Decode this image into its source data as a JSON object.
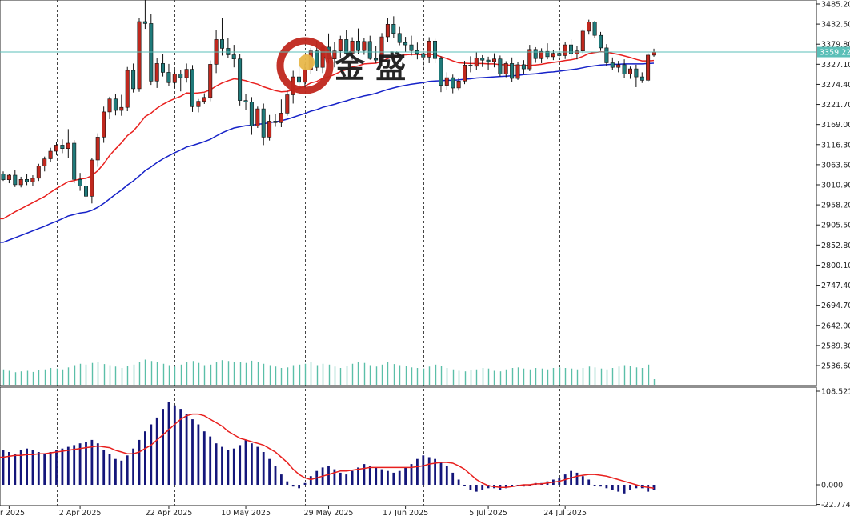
{
  "logo": {
    "text": "金 盛",
    "colors": {
      "ring": "#c0281e",
      "core": "#e8b84a"
    }
  },
  "colors": {
    "up": "#c0281e",
    "down": "#1f7a7a",
    "ma_fast": "#e8201e",
    "ma_slow": "#1622c8",
    "volume": "#5bbfa8",
    "histogram": "#14167a",
    "signal": "#e8201e",
    "current_price_line": "#5bbfb8",
    "current_price_label_bg": "#5bbfb8"
  },
  "chart_data": [
    {
      "type": "candlestick",
      "price_axis_ticks": [
        "3485.20",
        "3432.50",
        "3379.80",
        "3327.10",
        "3274.40",
        "3221.70",
        "3169.00",
        "3116.30",
        "3063.60",
        "3010.90",
        "2958.20",
        "2905.50",
        "2852.80",
        "2800.10",
        "2747.40",
        "2694.70",
        "2642.00",
        "2589.30",
        "2536.60"
      ],
      "ylim": [
        2510,
        3492
      ],
      "current_price": 3359.22,
      "current_price_label": "3359.22",
      "x_tick_labels": [
        "r 2025",
        "2 Apr 2025",
        "22 Apr 2025",
        "10 May 2025",
        "29 May 2025",
        "17 Jun 2025",
        "5 Jul 2025",
        "24 Jul 2025"
      ],
      "x_tick_bar_index": [
        1,
        13,
        28,
        41,
        55,
        68,
        82,
        95
      ],
      "vline_bar_index": [
        9,
        29,
        51,
        71,
        94,
        119
      ],
      "total_slots": 138,
      "candles": [
        [
          3039,
          3046,
          3021,
          3024
        ],
        [
          3024,
          3040,
          3015,
          3036
        ],
        [
          3036,
          3049,
          3005,
          3011
        ],
        [
          3011,
          3032,
          3004,
          3025
        ],
        [
          3025,
          3039,
          3010,
          3019
        ],
        [
          3019,
          3036,
          3008,
          3028
        ],
        [
          3028,
          3066,
          3021,
          3060
        ],
        [
          3060,
          3085,
          3046,
          3079
        ],
        [
          3079,
          3108,
          3071,
          3099
        ],
        [
          3099,
          3123,
          3089,
          3115
        ],
        [
          3115,
          3130,
          3094,
          3106
        ],
        [
          3106,
          3157,
          3081,
          3120
        ],
        [
          3120,
          3128,
          3015,
          3025
        ],
        [
          3025,
          3042,
          2995,
          3008
        ],
        [
          3008,
          3039,
          2971,
          2981
        ],
        [
          2981,
          3081,
          2962,
          3076
        ],
        [
          3076,
          3146,
          3058,
          3136
        ],
        [
          3136,
          3216,
          3121,
          3202
        ],
        [
          3202,
          3242,
          3183,
          3236
        ],
        [
          3236,
          3249,
          3193,
          3206
        ],
        [
          3206,
          3247,
          3192,
          3214
        ],
        [
          3214,
          3320,
          3204,
          3311
        ],
        [
          3311,
          3329,
          3253,
          3263
        ],
        [
          3263,
          3449,
          3255,
          3439
        ],
        [
          3439,
          3500,
          3420,
          3434
        ],
        [
          3434,
          3458,
          3273,
          3283
        ],
        [
          3283,
          3344,
          3265,
          3329
        ],
        [
          3329,
          3355,
          3295,
          3306
        ],
        [
          3306,
          3328,
          3271,
          3279
        ],
        [
          3279,
          3312,
          3265,
          3302
        ],
        [
          3302,
          3313,
          3256,
          3292
        ],
        [
          3292,
          3329,
          3279,
          3314
        ],
        [
          3314,
          3325,
          3202,
          3216
        ],
        [
          3216,
          3236,
          3201,
          3230
        ],
        [
          3230,
          3251,
          3223,
          3240
        ],
        [
          3240,
          3337,
          3230,
          3327
        ],
        [
          3327,
          3416,
          3304,
          3392
        ],
        [
          3392,
          3448,
          3350,
          3369
        ],
        [
          3369,
          3395,
          3343,
          3352
        ],
        [
          3352,
          3378,
          3319,
          3341
        ],
        [
          3341,
          3355,
          3219,
          3232
        ],
        [
          3232,
          3249,
          3207,
          3228
        ],
        [
          3228,
          3241,
          3142,
          3165
        ],
        [
          3165,
          3216,
          3160,
          3210
        ],
        [
          3210,
          3224,
          3115,
          3136
        ],
        [
          3136,
          3194,
          3127,
          3178
        ],
        [
          3178,
          3196,
          3163,
          3174
        ],
        [
          3174,
          3235,
          3162,
          3199
        ],
        [
          3199,
          3258,
          3192,
          3247
        ],
        [
          3247,
          3310,
          3224,
          3294
        ],
        [
          3294,
          3325,
          3260,
          3280
        ],
        [
          3280,
          3328,
          3264,
          3313
        ],
        [
          3313,
          3370,
          3302,
          3362
        ],
        [
          3362,
          3389,
          3309,
          3319
        ],
        [
          3319,
          3383,
          3304,
          3372
        ],
        [
          3372,
          3408,
          3329,
          3341
        ],
        [
          3341,
          3385,
          3319,
          3362
        ],
        [
          3362,
          3402,
          3344,
          3392
        ],
        [
          3392,
          3418,
          3351,
          3356
        ],
        [
          3356,
          3398,
          3339,
          3388
        ],
        [
          3388,
          3421,
          3353,
          3363
        ],
        [
          3363,
          3395,
          3352,
          3387
        ],
        [
          3387,
          3402,
          3339,
          3342
        ],
        [
          3342,
          3376,
          3330,
          3338
        ],
        [
          3338,
          3409,
          3322,
          3399
        ],
        [
          3399,
          3449,
          3385,
          3432
        ],
        [
          3432,
          3453,
          3396,
          3408
        ],
        [
          3408,
          3425,
          3377,
          3384
        ],
        [
          3384,
          3399,
          3360,
          3378
        ],
        [
          3378,
          3402,
          3350,
          3363
        ],
        [
          3363,
          3384,
          3340,
          3355
        ],
        [
          3355,
          3368,
          3310,
          3346
        ],
        [
          3346,
          3398,
          3330,
          3388
        ],
        [
          3388,
          3394,
          3330,
          3342
        ],
        [
          3342,
          3348,
          3254,
          3272
        ],
        [
          3272,
          3306,
          3260,
          3292
        ],
        [
          3292,
          3300,
          3251,
          3265
        ],
        [
          3265,
          3291,
          3258,
          3283
        ],
        [
          3283,
          3336,
          3275,
          3325
        ],
        [
          3325,
          3348,
          3306,
          3322
        ],
        [
          3322,
          3358,
          3312,
          3343
        ],
        [
          3343,
          3351,
          3320,
          3338
        ],
        [
          3338,
          3347,
          3312,
          3334
        ],
        [
          3334,
          3356,
          3319,
          3341
        ],
        [
          3341,
          3350,
          3295,
          3302
        ],
        [
          3302,
          3335,
          3293,
          3329
        ],
        [
          3329,
          3345,
          3280,
          3290
        ],
        [
          3290,
          3334,
          3286,
          3326
        ],
        [
          3326,
          3338,
          3302,
          3315
        ],
        [
          3315,
          3378,
          3309,
          3366
        ],
        [
          3366,
          3372,
          3331,
          3342
        ],
        [
          3342,
          3369,
          3330,
          3361
        ],
        [
          3361,
          3382,
          3340,
          3347
        ],
        [
          3347,
          3364,
          3338,
          3356
        ],
        [
          3356,
          3373,
          3345,
          3350
        ],
        [
          3350,
          3386,
          3341,
          3378
        ],
        [
          3378,
          3393,
          3345,
          3354
        ],
        [
          3354,
          3376,
          3340,
          3362
        ],
        [
          3362,
          3419,
          3356,
          3414
        ],
        [
          3414,
          3444,
          3405,
          3438
        ],
        [
          3438,
          3441,
          3396,
          3403
        ],
        [
          3403,
          3412,
          3362,
          3370
        ],
        [
          3370,
          3380,
          3322,
          3331
        ],
        [
          3331,
          3345,
          3313,
          3319
        ],
        [
          3319,
          3336,
          3306,
          3326
        ],
        [
          3326,
          3340,
          3290,
          3302
        ],
        [
          3302,
          3321,
          3289,
          3315
        ],
        [
          3315,
          3326,
          3267,
          3294
        ],
        [
          3294,
          3306,
          3278,
          3285
        ],
        [
          3285,
          3356,
          3281,
          3351
        ],
        [
          3351,
          3368,
          3347,
          3359
        ]
      ],
      "ma_fast": [
        2922,
        2931,
        2940,
        2948,
        2956,
        2964,
        2972,
        2980,
        2991,
        3001,
        3010,
        3019,
        3022,
        3026,
        3028,
        3035,
        3048,
        3066,
        3088,
        3105,
        3121,
        3140,
        3152,
        3170,
        3190,
        3199,
        3212,
        3222,
        3230,
        3237,
        3243,
        3252,
        3251,
        3252,
        3254,
        3260,
        3270,
        3278,
        3284,
        3289,
        3287,
        3284,
        3279,
        3275,
        3268,
        3263,
        3258,
        3255,
        3256,
        3260,
        3264,
        3270,
        3278,
        3282,
        3290,
        3294,
        3300,
        3308,
        3313,
        3320,
        3323,
        3328,
        3329,
        3330,
        3335,
        3342,
        3347,
        3350,
        3352,
        3353,
        3353,
        3352,
        3354,
        3352,
        3347,
        3342,
        3336,
        3331,
        3330,
        3329,
        3329,
        3329,
        3328,
        3328,
        3326,
        3326,
        3324,
        3323,
        3324,
        3324,
        3325,
        3327,
        3330,
        3332,
        3334,
        3337,
        3339,
        3342,
        3348,
        3355,
        3358,
        3360,
        3359,
        3356,
        3353,
        3349,
        3345,
        3340,
        3336,
        3336,
        3337
      ],
      "ma_slow": [
        2860,
        2866,
        2872,
        2878,
        2884,
        2890,
        2896,
        2902,
        2909,
        2915,
        2922,
        2929,
        2933,
        2937,
        2939,
        2944,
        2952,
        2962,
        2974,
        2986,
        2997,
        3010,
        3021,
        3034,
        3048,
        3058,
        3069,
        3079,
        3087,
        3095,
        3102,
        3110,
        3114,
        3119,
        3124,
        3130,
        3139,
        3147,
        3154,
        3160,
        3163,
        3166,
        3167,
        3170,
        3171,
        3174,
        3176,
        3179,
        3183,
        3188,
        3193,
        3198,
        3204,
        3208,
        3214,
        3218,
        3222,
        3227,
        3231,
        3236,
        3240,
        3244,
        3247,
        3251,
        3256,
        3261,
        3265,
        3269,
        3272,
        3275,
        3277,
        3279,
        3282,
        3283,
        3284,
        3285,
        3285,
        3286,
        3288,
        3289,
        3291,
        3292,
        3293,
        3294,
        3295,
        3296,
        3297,
        3298,
        3300,
        3301,
        3302,
        3304,
        3306,
        3307,
        3309,
        3311,
        3313,
        3315,
        3318,
        3321,
        3323,
        3325,
        3326,
        3327,
        3327,
        3328,
        3328,
        3328,
        3328,
        3329,
        3330
      ],
      "volume": [
        0.55,
        0.5,
        0.45,
        0.48,
        0.5,
        0.46,
        0.52,
        0.55,
        0.6,
        0.58,
        0.55,
        0.62,
        0.7,
        0.75,
        0.72,
        0.78,
        0.8,
        0.74,
        0.7,
        0.65,
        0.6,
        0.68,
        0.72,
        0.82,
        0.9,
        0.85,
        0.8,
        0.75,
        0.7,
        0.65,
        0.72,
        0.8,
        0.85,
        0.78,
        0.7,
        0.72,
        0.8,
        0.88,
        0.85,
        0.8,
        0.82,
        0.78,
        0.86,
        0.8,
        0.75,
        0.7,
        0.65,
        0.6,
        0.62,
        0.7,
        0.72,
        0.75,
        0.8,
        0.7,
        0.75,
        0.72,
        0.65,
        0.6,
        0.68,
        0.75,
        0.8,
        0.78,
        0.7,
        0.65,
        0.72,
        0.8,
        0.74,
        0.7,
        0.68,
        0.62,
        0.6,
        0.58,
        0.65,
        0.72,
        0.68,
        0.6,
        0.55,
        0.5,
        0.48,
        0.52,
        0.55,
        0.6,
        0.58,
        0.5,
        0.48,
        0.55,
        0.6,
        0.62,
        0.58,
        0.55,
        0.6,
        0.58,
        0.55,
        0.6,
        0.62,
        0.6,
        0.58,
        0.55,
        0.6,
        0.65,
        0.62,
        0.58,
        0.55,
        0.6,
        0.65,
        0.7,
        0.68,
        0.62,
        0.6,
        0.72,
        0.2
      ]
    },
    {
      "type": "bar",
      "name_text": "",
      "axis_ticks": [
        "108.521",
        "0.000",
        "-22.774"
      ],
      "ylim": [
        -22.774,
        108.521
      ],
      "histogram": [
        40,
        38,
        36,
        40,
        42,
        40,
        38,
        36,
        38,
        40,
        42,
        44,
        46,
        48,
        50,
        52,
        48,
        40,
        36,
        30,
        28,
        34,
        42,
        52,
        62,
        70,
        78,
        88,
        96,
        92,
        88,
        82,
        76,
        70,
        62,
        56,
        48,
        44,
        40,
        42,
        46,
        52,
        48,
        44,
        38,
        30,
        22,
        12,
        4,
        -2,
        -4,
        2,
        10,
        16,
        20,
        22,
        18,
        14,
        12,
        16,
        20,
        24,
        22,
        20,
        18,
        16,
        14,
        16,
        20,
        24,
        30,
        34,
        32,
        30,
        26,
        22,
        14,
        6,
        0,
        -6,
        -8,
        -6,
        -4,
        -4,
        -6,
        -4,
        -2,
        0,
        -2,
        0,
        2,
        2,
        4,
        6,
        8,
        12,
        16,
        14,
        10,
        6,
        0,
        -2,
        -4,
        -6,
        -8,
        -10,
        -6,
        -4,
        -4,
        -8,
        -6
      ],
      "signal": [
        32,
        33,
        34,
        34,
        35,
        35,
        36,
        36,
        37,
        38,
        39,
        40,
        41,
        42,
        43,
        44,
        45,
        44,
        43,
        40,
        38,
        36,
        36,
        38,
        42,
        46,
        52,
        58,
        64,
        70,
        76,
        80,
        82,
        82,
        80,
        76,
        72,
        68,
        62,
        58,
        54,
        52,
        50,
        48,
        46,
        42,
        38,
        32,
        26,
        18,
        12,
        8,
        6,
        8,
        10,
        12,
        14,
        16,
        16,
        17,
        18,
        19,
        20,
        20,
        20,
        20,
        20,
        20,
        20,
        20,
        21,
        22,
        24,
        25,
        26,
        26,
        25,
        22,
        18,
        12,
        6,
        2,
        -1,
        -2,
        -3,
        -3,
        -2,
        -1,
        0,
        0,
        1,
        1,
        2,
        3,
        4,
        6,
        8,
        10,
        11,
        12,
        12,
        11,
        10,
        8,
        6,
        4,
        2,
        0,
        -2,
        -3,
        -4
      ]
    }
  ]
}
